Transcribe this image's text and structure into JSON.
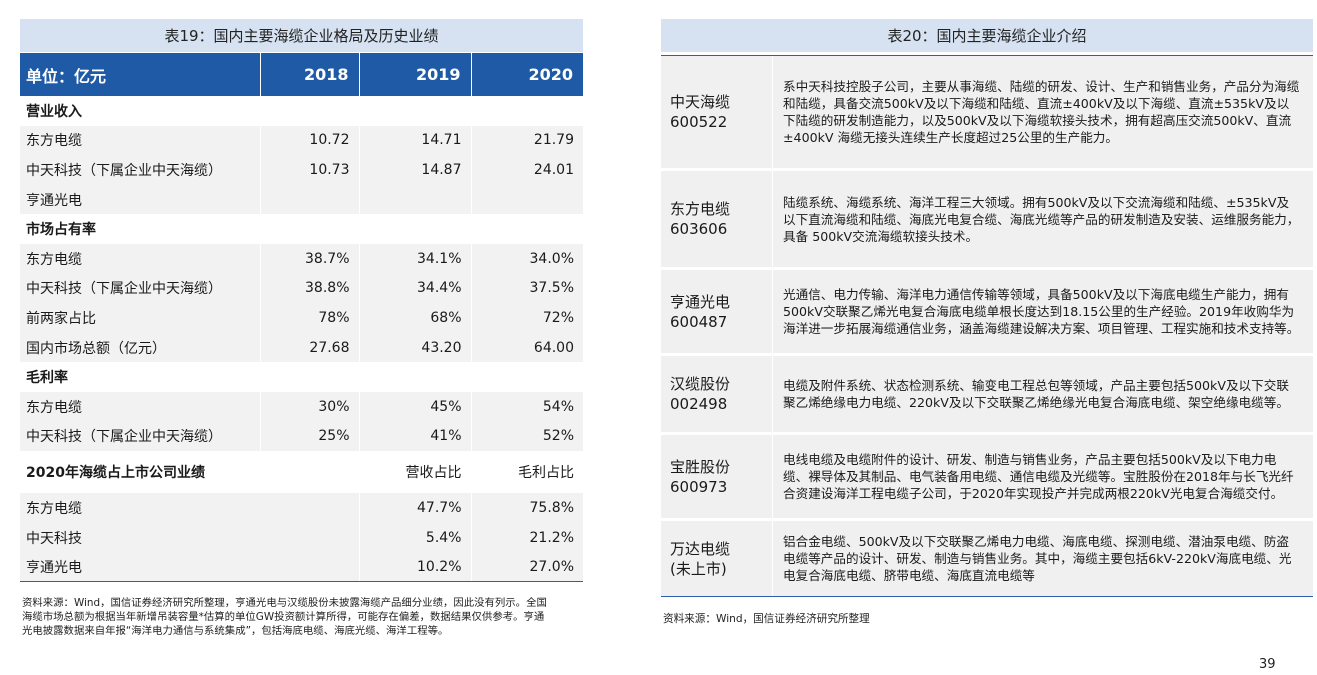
{
  "left": {
    "title": "表19：国内主要海缆企业格局及历史业绩",
    "header": {
      "unit": "单位：亿元",
      "years": [
        "2018",
        "2019",
        "2020"
      ]
    },
    "revenue": {
      "label": "营业收入",
      "rows": [
        {
          "name": "东方电缆",
          "v": [
            "10.72",
            "14.71",
            "21.79"
          ]
        },
        {
          "name": "中天科技（下属企业中天海缆）",
          "v": [
            "10.73",
            "14.87",
            "24.01"
          ]
        },
        {
          "name": "亨通光电",
          "v": [
            "",
            "",
            ""
          ]
        }
      ]
    },
    "share": {
      "label": "市场占有率",
      "rows": [
        {
          "name": "东方电缆",
          "v": [
            "38.7%",
            "34.1%",
            "34.0%"
          ]
        },
        {
          "name": "中天科技（下属企业中天海缆）",
          "v": [
            "38.8%",
            "34.4%",
            "37.5%"
          ]
        },
        {
          "name": "前两家占比",
          "v": [
            "78%",
            "68%",
            "72%"
          ]
        },
        {
          "name": "国内市场总额（亿元）",
          "v": [
            "27.68",
            "43.20",
            "64.00"
          ]
        }
      ]
    },
    "margin": {
      "label": "毛利率",
      "rows": [
        {
          "name": "东方电缆",
          "v": [
            "30%",
            "45%",
            "54%"
          ]
        },
        {
          "name": "中天科技（下属企业中天海缆）",
          "v": [
            "25%",
            "41%",
            "52%"
          ]
        }
      ]
    },
    "perf2020": {
      "label": "2020年海缆占上市公司业绩",
      "col1": "营收占比",
      "col2": "毛利占比",
      "rows": [
        {
          "name": "东方电缆",
          "v": [
            "47.7%",
            "75.8%"
          ]
        },
        {
          "name": "中天科技",
          "v": [
            "5.4%",
            "21.2%"
          ]
        },
        {
          "name": "亨通光电",
          "v": [
            "10.2%",
            "27.0%"
          ]
        }
      ]
    },
    "note": "资料来源：Wind，国信证券经济研究所整理，亨通光电与汉缆股份未披露海缆产品细分业绩，因此没有列示。全国海缆市场总额为根据当年新增吊装容量*估算的单位GW投资额计算所得，可能存在偏差，数据结果仅供参考。亨通光电披露数据来自年报“海洋电力通信与系统集成”，包括海底电缆、海底光缆、海洋工程等。"
  },
  "right": {
    "title": "表20：国内主要海缆企业介绍",
    "rows": [
      {
        "name": "中天海缆",
        "code": "600522",
        "desc": "系中天科技控股子公司，主要从事海缆、陆缆的研发、设计、生产和销售业务，产品分为海缆和陆缆，具备交流500kV及以下海缆和陆缆、直流±400kV及以下海缆、直流±535kV及以下陆缆的研发制造能力，以及500kV及以下海缆软接头技术，拥有超高压交流500kV、直流±400kV 海缆无接头连续生产长度超过25公里的生产能力。"
      },
      {
        "name": "东方电缆",
        "code": "603606",
        "desc": "陆缆系统、海缆系统、海洋工程三大领域。拥有500kV及以下交流海缆和陆缆、±535kV及以下直流海缆和陆缆、海底光电复合缆、海底光缆等产品的研发制造及安装、运维服务能力，具备 500kV交流海缆软接头技术。"
      },
      {
        "name": "亨通光电",
        "code": "600487",
        "desc": "光通信、电力传输、海洋电力通信传输等领域，具备500kV及以下海底电缆生产能力，拥有500kV交联聚乙烯光电复合海底电缆单根长度达到18.15公里的生产经验。2019年收购华为海洋进一步拓展海缆通信业务，涵盖海缆建设解决方案、项目管理、工程实施和技术支持等。"
      },
      {
        "name": "汉缆股份",
        "code": "002498",
        "desc": "电缆及附件系统、状态检测系统、输变电工程总包等领域，产品主要包括500kV及以下交联聚乙烯绝缘电力电缆、220kV及以下交联聚乙烯绝缘光电复合海底电缆、架空绝缘电缆等。"
      },
      {
        "name": "宝胜股份",
        "code": "600973",
        "desc": "电线电缆及电缆附件的设计、研发、制造与销售业务，产品主要包括500kV及以下电力电缆、裸导体及其制品、电气装备用电缆、通信电缆及光缆等。宝胜股份在2018年与长飞光纤合资建设海洋工程电缆子公司，于2020年实现投产并完成两根220kV光电复合海缆交付。"
      },
      {
        "name": "万达电缆",
        "code": "(未上市)",
        "desc": "铝合金电缆、500kV及以下交联聚乙烯电力电缆、海底电缆、探测电缆、潜油泵电缆、防盗电缆等产品的设计、研发、制造与销售业务。其中，海缆主要包括6kV-220kV海底电缆、光电复合海底电缆、脐带电缆、海底直流电缆等"
      }
    ],
    "note": "资料来源：Wind，国信证券经济研究所整理"
  },
  "page_number": "39"
}
